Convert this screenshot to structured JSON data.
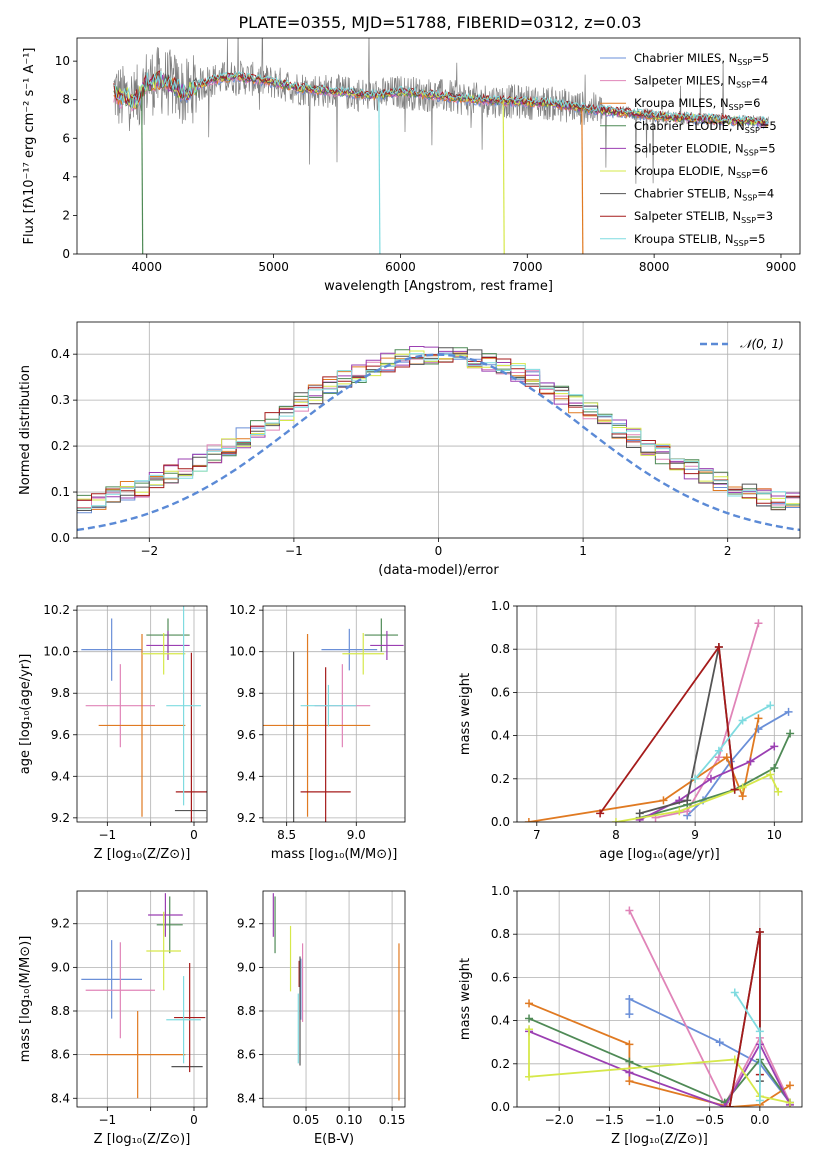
{
  "figure_title": "PLATE=0355, MJD=51788, FIBERID=0312, z=0.03",
  "colors": {
    "Chabrier MILES": "#6a8fd8",
    "Salpeter MILES": "#e084b8",
    "Kroupa MILES": "#e07a22",
    "Chabrier ELODIE": "#4f8a56",
    "Salpeter ELODIE": "#9b3fb2",
    "Kroupa ELODIE": "#d6e84a",
    "Chabrier STELIB": "#555555",
    "Salpeter STELIB": "#a51b1b",
    "Kroupa STELIB": "#7fdbe0",
    "data": "#7f7f7f",
    "normal": "#5b8ad6"
  },
  "chart_data": [
    {
      "id": "spectrum",
      "type": "line",
      "xlabel": "wavelength [Angstrom, rest frame]",
      "ylabel": "Flux [fλ10⁻¹⁷ erg cm⁻² s⁻¹ A⁻¹]",
      "xlim": [
        3450,
        9150
      ],
      "ylim": [
        0,
        11.2
      ],
      "xticks": [
        4000,
        5000,
        6000,
        7000,
        8000,
        9000
      ],
      "yticks": [
        0,
        2,
        4,
        6,
        8,
        10
      ],
      "grid": false,
      "legend_position": "top-right",
      "legend": [
        "Chabrier MILES, N_SSP=5",
        "Salpeter MILES, N_SSP=4",
        "Kroupa MILES, N_SSP=6",
        "Chabrier ELODIE, N_SSP=5",
        "Salpeter ELODIE, N_SSP=5",
        "Kroupa ELODIE, N_SSP=6",
        "Chabrier STELIB, N_SSP=4",
        "Salpeter STELIB, N_SSP=3",
        "Kroupa STELIB, N_SSP=5"
      ],
      "continuum": {
        "x": [
          3750,
          3800,
          3850,
          3900,
          3950,
          4000,
          4100,
          4200,
          4300,
          4400,
          4500,
          4700,
          5000,
          5200,
          5500,
          5800,
          6000,
          6300,
          6600,
          6900,
          7200,
          7500,
          7800,
          8100,
          8400,
          8700,
          8900
        ],
        "y": [
          8.4,
          8.0,
          8.2,
          7.8,
          8.3,
          8.9,
          9.0,
          8.8,
          8.3,
          8.7,
          9.0,
          9.2,
          8.9,
          8.6,
          8.4,
          8.2,
          8.4,
          8.2,
          8.0,
          7.9,
          7.8,
          7.5,
          7.3,
          7.1,
          7.0,
          6.9,
          6.8
        ]
      },
      "drops": [
        {
          "x": 3960,
          "y": 0.0,
          "series": "Chabrier ELODIE"
        },
        {
          "x": 5830,
          "y": 0.0,
          "series": "Kroupa STELIB"
        },
        {
          "x": 6810,
          "y": 0.0,
          "series": "Kroupa ELODIE"
        },
        {
          "x": 7430,
          "y": 0.0,
          "series": "Kroupa MILES"
        }
      ]
    },
    {
      "id": "residuals",
      "type": "bar",
      "xlabel": "(data-model)/error",
      "ylabel": "Normed distribution",
      "xlim": [
        -2.5,
        2.5
      ],
      "ylim": [
        0,
        0.47
      ],
      "xticks": [
        -2,
        -1,
        0,
        1,
        2
      ],
      "yticks": [
        0.0,
        0.1,
        0.2,
        0.3,
        0.4
      ],
      "grid": true,
      "legend_position": "top-right",
      "normal_label": "𝒩(0, 1)",
      "bins_edges": [
        -2.5,
        2.5
      ],
      "bin_width": 0.1
    },
    {
      "id": "age-vs-Z",
      "type": "scatter",
      "xlabel": "Z [log₁₀(Z/Z⊙)]",
      "ylabel": "age  [log₁₀(age/yr)]",
      "xlim": [
        -1.35,
        0.15
      ],
      "ylim": [
        9.18,
        10.22
      ],
      "xticks": [
        -1,
        -0.5,
        0
      ],
      "xtick_labels": [
        "−1",
        "",
        "0"
      ],
      "yticks": [
        9.2,
        9.4,
        9.6,
        9.8,
        10.0,
        10.2
      ],
      "grid": true,
      "points": [
        {
          "s": "Chabrier MILES",
          "x": -0.95,
          "y": 10.01,
          "xe": 0.35,
          "ye": 0.15
        },
        {
          "s": "Salpeter MILES",
          "x": -0.85,
          "y": 9.74,
          "xe": 0.4,
          "ye": 0.2
        },
        {
          "s": "Kroupa MILES",
          "x": -0.6,
          "y": 9.645,
          "xe": 0.5,
          "ye": 0.44
        },
        {
          "s": "Chabrier ELODIE",
          "x": -0.3,
          "y": 10.08,
          "xe": 0.25,
          "ye": 0.08
        },
        {
          "s": "Salpeter ELODIE",
          "x": -0.3,
          "y": 10.03,
          "xe": 0.25,
          "ye": 0.07
        },
        {
          "s": "Kroupa ELODIE",
          "x": -0.35,
          "y": 9.99,
          "xe": 0.25,
          "ye": 0.1
        },
        {
          "s": "Chabrier STELIB",
          "x": -0.04,
          "y": 9.235,
          "xe": 0.18,
          "ye": 0.0
        },
        {
          "s": "Salpeter STELIB",
          "x": -0.03,
          "y": 9.325,
          "xe": 0.18,
          "ye": 0.67
        },
        {
          "s": "Kroupa STELIB",
          "x": -0.12,
          "y": 9.74,
          "xe": 0.2,
          "ye": 0.48
        }
      ]
    },
    {
      "id": "age-vs-mass",
      "type": "scatter",
      "xlabel": "mass [log₁₀(M/M⊙)]",
      "ylabel": "",
      "xlim": [
        8.33,
        9.35
      ],
      "ylim": [
        9.18,
        10.22
      ],
      "xticks": [
        8.5,
        9.0
      ],
      "yticks": [
        9.2,
        9.4,
        9.6,
        9.8,
        10.0,
        10.2
      ],
      "grid": true,
      "points": [
        {
          "s": "Chabrier MILES",
          "x": 8.95,
          "y": 10.01,
          "xe": 0.2,
          "ye": 0.1
        },
        {
          "s": "Salpeter MILES",
          "x": 8.9,
          "y": 9.74,
          "xe": 0.2,
          "ye": 0.2
        },
        {
          "s": "Kroupa MILES",
          "x": 8.65,
          "y": 9.645,
          "xe": 0.45,
          "ye": 0.44
        },
        {
          "s": "Chabrier ELODIE",
          "x": 9.18,
          "y": 10.08,
          "xe": 0.12,
          "ye": 0.08
        },
        {
          "s": "Salpeter ELODIE",
          "x": 9.22,
          "y": 10.03,
          "xe": 0.12,
          "ye": 0.07
        },
        {
          "s": "Kroupa ELODIE",
          "x": 9.05,
          "y": 9.99,
          "xe": 0.15,
          "ye": 0.1
        },
        {
          "s": "Chabrier STELIB",
          "x": 8.55,
          "y": 9.235,
          "xe": 0.0,
          "ye": 0.765
        },
        {
          "s": "Salpeter STELIB",
          "x": 8.78,
          "y": 9.325,
          "xe": 0.18,
          "ye": 0.6
        },
        {
          "s": "Kroupa STELIB",
          "x": 8.8,
          "y": 9.74,
          "xe": 0.2,
          "ye": 0.1
        }
      ]
    },
    {
      "id": "weight-vs-age",
      "type": "line",
      "xlabel": "age  [log₁₀(age/yr)]",
      "ylabel": "mass weight",
      "xlim": [
        6.75,
        10.35
      ],
      "ylim": [
        0,
        1.0
      ],
      "xticks": [
        7,
        8,
        9,
        10
      ],
      "yticks": [
        0.0,
        0.2,
        0.4,
        0.6,
        0.8,
        1.0
      ],
      "grid": true,
      "series": [
        {
          "name": "Chabrier MILES",
          "x": [
            8.9,
            9.1,
            9.45,
            9.8,
            10.18
          ],
          "y": [
            0.03,
            0.1,
            0.28,
            0.43,
            0.51
          ]
        },
        {
          "name": "Salpeter MILES",
          "x": [
            8.5,
            8.9,
            9.3,
            9.8
          ],
          "y": [
            0.02,
            0.05,
            0.3,
            0.92
          ]
        },
        {
          "name": "Kroupa MILES",
          "x": [
            6.9,
            8.6,
            9.0,
            9.4,
            9.6,
            9.8
          ],
          "y": [
            0.0,
            0.1,
            0.2,
            0.3,
            0.12,
            0.48
          ]
        },
        {
          "name": "Chabrier ELODIE",
          "x": [
            8.3,
            8.9,
            9.5,
            10.0,
            10.2
          ],
          "y": [
            0.02,
            0.08,
            0.15,
            0.25,
            0.41
          ]
        },
        {
          "name": "Salpeter ELODIE",
          "x": [
            8.3,
            8.8,
            9.2,
            9.7,
            10.0
          ],
          "y": [
            0.01,
            0.1,
            0.2,
            0.28,
            0.35
          ]
        },
        {
          "name": "Kroupa ELODIE",
          "x": [
            8.0,
            8.8,
            9.6,
            9.95,
            10.05
          ],
          "y": [
            0.0,
            0.05,
            0.16,
            0.22,
            0.14
          ]
        },
        {
          "name": "Chabrier STELIB",
          "x": [
            8.3,
            8.9,
            9.3,
            9.5
          ],
          "y": [
            0.04,
            0.1,
            0.81,
            0.15
          ]
        },
        {
          "name": "Salpeter STELIB",
          "x": [
            7.8,
            9.3,
            9.5
          ],
          "y": [
            0.04,
            0.81,
            0.15
          ]
        },
        {
          "name": "Kroupa STELIB",
          "x": [
            9.0,
            9.3,
            9.6,
            9.95
          ],
          "y": [
            0.2,
            0.33,
            0.47,
            0.54
          ]
        }
      ]
    },
    {
      "id": "mass-vs-Z",
      "type": "scatter",
      "xlabel": "Z [log₁₀(Z/Z⊙)]",
      "ylabel": "mass [log₁₀(M/M⊙)]",
      "xlim": [
        -1.35,
        0.15
      ],
      "ylim": [
        8.36,
        9.35
      ],
      "xticks": [
        -1,
        -0.5,
        0
      ],
      "xtick_labels": [
        "−1",
        "",
        "0"
      ],
      "yticks": [
        8.4,
        8.6,
        8.8,
        9.0,
        9.2
      ],
      "grid": true,
      "points": [
        {
          "s": "Chabrier MILES",
          "x": -0.95,
          "y": 8.945,
          "xe": 0.35,
          "ye": 0.18
        },
        {
          "s": "Salpeter MILES",
          "x": -0.85,
          "y": 8.895,
          "xe": 0.4,
          "ye": 0.22
        },
        {
          "s": "Kroupa MILES",
          "x": -0.65,
          "y": 8.6,
          "xe": 0.55,
          "ye": 0.2
        },
        {
          "s": "Chabrier ELODIE",
          "x": -0.28,
          "y": 9.195,
          "xe": 0.15,
          "ye": 0.13
        },
        {
          "s": "Salpeter ELODIE",
          "x": -0.33,
          "y": 9.24,
          "xe": 0.2,
          "ye": 0.1
        },
        {
          "s": "Kroupa ELODIE",
          "x": -0.35,
          "y": 9.075,
          "xe": 0.2,
          "ye": 0.18
        },
        {
          "s": "Chabrier STELIB",
          "x": -0.08,
          "y": 8.545,
          "xe": 0.18,
          "ye": 0.0
        },
        {
          "s": "Salpeter STELIB",
          "x": -0.05,
          "y": 8.77,
          "xe": 0.18,
          "ye": 0.25
        },
        {
          "s": "Kroupa STELIB",
          "x": -0.12,
          "y": 8.76,
          "xe": 0.2,
          "ye": 0.2
        }
      ]
    },
    {
      "id": "mass-vs-ebv",
      "type": "scatter",
      "xlabel": "E(B-V)",
      "ylabel": "",
      "xlim": [
        0.0,
        0.165
      ],
      "ylim": [
        8.36,
        9.35
      ],
      "xticks": [
        0.05,
        0.1,
        0.15
      ],
      "yticks": [
        8.4,
        8.6,
        8.8,
        9.0,
        9.2
      ],
      "grid": true,
      "points": [
        {
          "s": "Salpeter ELODIE",
          "x": 0.012,
          "y": 9.24,
          "ye": 0.1
        },
        {
          "s": "Chabrier ELODIE",
          "x": 0.014,
          "y": 9.195,
          "ye": 0.13
        },
        {
          "s": "Kroupa ELODIE",
          "x": 0.032,
          "y": 9.04,
          "ye": 0.15
        },
        {
          "s": "Salpeter MILES",
          "x": 0.046,
          "y": 8.93,
          "ye": 0.18
        },
        {
          "s": "Chabrier MILES",
          "x": 0.044,
          "y": 8.9,
          "ye": 0.14
        },
        {
          "s": "Salpeter STELIB",
          "x": 0.042,
          "y": 8.97,
          "ye": 0.06
        },
        {
          "s": "Kroupa STELIB",
          "x": 0.041,
          "y": 8.72,
          "ye": 0.16
        },
        {
          "s": "Chabrier STELIB",
          "x": 0.043,
          "y": 8.8,
          "ye": 0.25
        },
        {
          "s": "Kroupa MILES",
          "x": 0.158,
          "y": 8.75,
          "ye": 0.36
        }
      ]
    },
    {
      "id": "weight-vs-Z",
      "type": "line",
      "xlabel": "Z [log₁₀(Z/Z⊙)]",
      "ylabel": "mass weight",
      "xlim": [
        -2.42,
        0.42
      ],
      "ylim": [
        0,
        1.0
      ],
      "xticks": [
        -2.0,
        -1.5,
        -1.0,
        -0.5,
        0.0
      ],
      "yticks": [
        0.0,
        0.2,
        0.4,
        0.6,
        0.8,
        1.0
      ],
      "grid": true,
      "series": [
        {
          "name": "Chabrier MILES",
          "x": [
            -1.3,
            -1.3,
            -0.4,
            0.0,
            0.3
          ],
          "y": [
            0.43,
            0.5,
            0.3,
            0.2,
            0.02
          ]
        },
        {
          "name": "Salpeter MILES",
          "x": [
            -1.3,
            -0.35,
            0.0,
            0.3
          ],
          "y": [
            0.91,
            0.01,
            0.32,
            0.02
          ]
        },
        {
          "name": "Kroupa MILES",
          "x": [
            -2.3,
            -1.3,
            -1.3,
            -0.3,
            0.0,
            0.3
          ],
          "y": [
            0.48,
            0.29,
            0.12,
            0.0,
            0.01,
            0.1
          ]
        },
        {
          "name": "Chabrier ELODIE",
          "x": [
            -2.3,
            -1.3,
            -0.35,
            0.0,
            0.3
          ],
          "y": [
            0.41,
            0.21,
            0.02,
            0.22,
            0.02
          ]
        },
        {
          "name": "Salpeter ELODIE",
          "x": [
            -2.3,
            -1.3,
            -0.35,
            0.0,
            0.3
          ],
          "y": [
            0.35,
            0.16,
            0.0,
            0.29,
            0.01
          ]
        },
        {
          "name": "Kroupa ELODIE",
          "x": [
            -2.3,
            -2.3,
            -0.25,
            0.0,
            0.3
          ],
          "y": [
            0.36,
            0.14,
            0.22,
            0.05,
            0.02
          ]
        },
        {
          "name": "Chabrier STELIB",
          "x": [
            -0.3,
            0.0,
            0.0
          ],
          "y": [
            0.0,
            0.81,
            0.12
          ]
        },
        {
          "name": "Salpeter STELIB",
          "x": [
            -0.3,
            0.0,
            0.0
          ],
          "y": [
            0.0,
            0.81,
            0.15
          ]
        },
        {
          "name": "Kroupa STELIB",
          "x": [
            -0.25,
            0.0,
            0.0
          ],
          "y": [
            0.53,
            0.35,
            0.03
          ]
        }
      ]
    }
  ]
}
